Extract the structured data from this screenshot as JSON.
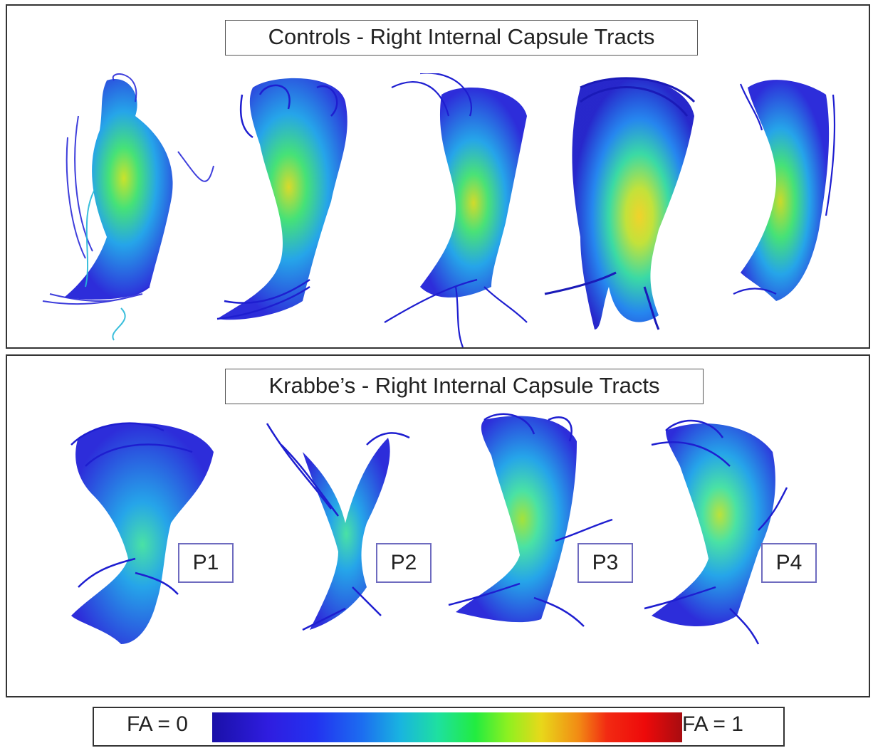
{
  "top_panel": {
    "title": "Controls - Right Internal Capsule Tracts"
  },
  "bottom_panel": {
    "title": "Krabbe’s - Right Internal Capsule Tracts",
    "patient_labels": [
      "P1",
      "P2",
      "P3",
      "P4"
    ]
  },
  "colorbar": {
    "min_label": "FA = 0",
    "max_label": "FA = 1",
    "colors": [
      "#1a10a8",
      "#2f1de0",
      "#1c6ef0",
      "#19b4e0",
      "#22ec40",
      "#e8d81a",
      "#f28a14",
      "#ee0a0a",
      "#a80c10"
    ]
  }
}
